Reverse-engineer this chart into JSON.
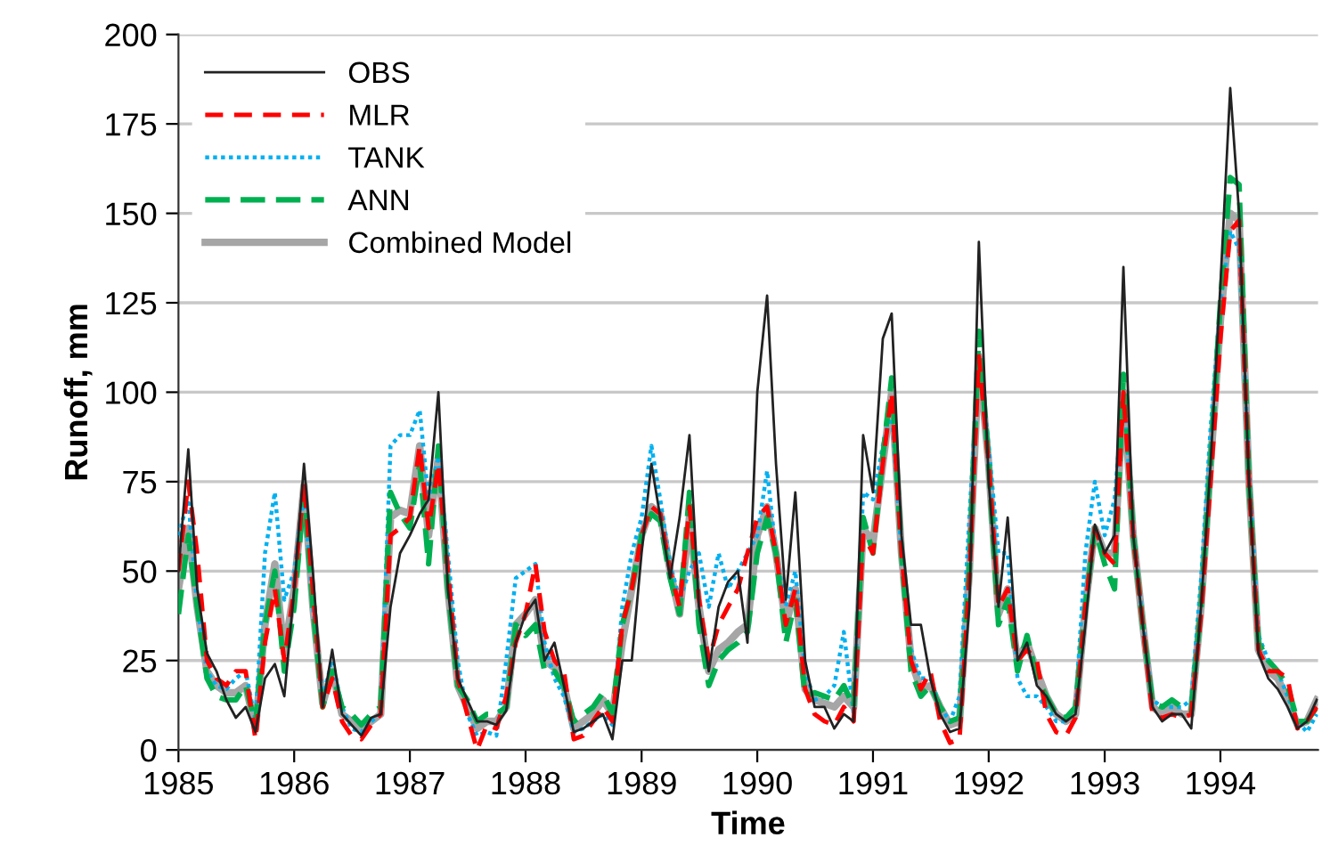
{
  "chart_data": {
    "type": "line",
    "xlabel": "Time",
    "ylabel": "Runoff, mm",
    "x": [
      "1985-01",
      "1985-02",
      "1985-03",
      "1985-04",
      "1985-05",
      "1985-06",
      "1985-07",
      "1985-08",
      "1985-09",
      "1985-10",
      "1985-11",
      "1985-12",
      "1986-01",
      "1986-02",
      "1986-03",
      "1986-04",
      "1986-05",
      "1986-06",
      "1986-07",
      "1986-08",
      "1986-09",
      "1986-10",
      "1986-11",
      "1986-12",
      "1987-01",
      "1987-02",
      "1987-03",
      "1987-04",
      "1987-05",
      "1987-06",
      "1987-07",
      "1987-08",
      "1987-09",
      "1987-10",
      "1987-11",
      "1987-12",
      "1988-01",
      "1988-02",
      "1988-03",
      "1988-04",
      "1988-05",
      "1988-06",
      "1988-07",
      "1988-08",
      "1988-09",
      "1988-10",
      "1988-11",
      "1988-12",
      "1989-01",
      "1989-02",
      "1989-03",
      "1989-04",
      "1989-05",
      "1989-06",
      "1989-07",
      "1989-08",
      "1989-09",
      "1989-10",
      "1989-11",
      "1989-12",
      "1990-01",
      "1990-02",
      "1990-03",
      "1990-04",
      "1990-05",
      "1990-06",
      "1990-07",
      "1990-08",
      "1990-09",
      "1990-10",
      "1990-11",
      "1990-12",
      "1991-01",
      "1991-02",
      "1991-03",
      "1991-04",
      "1991-05",
      "1991-06",
      "1991-07",
      "1991-08",
      "1991-09",
      "1991-10",
      "1991-11",
      "1991-12",
      "1992-01",
      "1992-02",
      "1992-03",
      "1992-04",
      "1992-05",
      "1992-06",
      "1992-07",
      "1992-08",
      "1992-09",
      "1992-10",
      "1992-11",
      "1992-12",
      "1993-01",
      "1993-02",
      "1993-03",
      "1993-04",
      "1993-05",
      "1993-06",
      "1993-07",
      "1993-08",
      "1993-09",
      "1993-10",
      "1993-11",
      "1993-12",
      "1994-01",
      "1994-02",
      "1994-03",
      "1994-04",
      "1994-05",
      "1994-06",
      "1994-07",
      "1994-08",
      "1994-09",
      "1994-10",
      "1994-11"
    ],
    "series": [
      {
        "name": "OBS",
        "color": "#222222",
        "line_style": "solid",
        "values": [
          50,
          84,
          45,
          27,
          22,
          14,
          9,
          12,
          5,
          20,
          24,
          15,
          45,
          80,
          50,
          12,
          28,
          10,
          7,
          4,
          9,
          10,
          40,
          55,
          60,
          66,
          70,
          100,
          45,
          20,
          14,
          8,
          8,
          7,
          11,
          30,
          38,
          42,
          25,
          30,
          18,
          5,
          6,
          8,
          10,
          3,
          25,
          25,
          55,
          80,
          65,
          48,
          65,
          88,
          40,
          22,
          40,
          47,
          50,
          30,
          100,
          127,
          80,
          42,
          72,
          25,
          12,
          12,
          6,
          10,
          8,
          88,
          72,
          115,
          122,
          60,
          35,
          35,
          20,
          10,
          5,
          6,
          40,
          142,
          75,
          40,
          65,
          25,
          30,
          18,
          15,
          10,
          8,
          10,
          35,
          63,
          55,
          60,
          135,
          60,
          35,
          12,
          8,
          10,
          10,
          6,
          40,
          80,
          130,
          185,
          150,
          75,
          27,
          20,
          17,
          12,
          6,
          8,
          14
        ]
      },
      {
        "name": "MLR",
        "color": "#ff0000",
        "line_style": "dashed",
        "values": [
          50,
          75,
          55,
          25,
          20,
          18,
          22,
          22,
          3,
          30,
          45,
          25,
          45,
          75,
          45,
          12,
          20,
          8,
          4,
          3,
          7,
          10,
          60,
          62,
          65,
          85,
          62,
          80,
          50,
          20,
          10,
          0,
          7,
          6,
          15,
          30,
          38,
          52,
          33,
          25,
          22,
          3,
          4,
          8,
          12,
          8,
          35,
          45,
          60,
          68,
          66,
          50,
          40,
          68,
          42,
          25,
          35,
          40,
          45,
          55,
          65,
          68,
          55,
          35,
          45,
          17,
          10,
          8,
          7,
          12,
          8,
          60,
          55,
          80,
          100,
          55,
          25,
          17,
          22,
          8,
          2,
          3,
          48,
          110,
          80,
          40,
          45,
          25,
          28,
          25,
          10,
          5,
          4,
          9,
          40,
          62,
          55,
          52,
          100,
          60,
          35,
          10,
          9,
          10,
          9,
          10,
          38,
          75,
          115,
          145,
          148,
          75,
          28,
          22,
          22,
          20,
          6,
          8,
          12
        ]
      },
      {
        "name": "TANK",
        "color": "#00b0f0",
        "line_style": "dotted",
        "values": [
          60,
          70,
          40,
          22,
          18,
          17,
          20,
          22,
          8,
          55,
          72,
          42,
          50,
          72,
          40,
          15,
          25,
          12,
          6,
          5,
          8,
          10,
          85,
          88,
          88,
          95,
          70,
          82,
          55,
          25,
          10,
          4,
          5,
          4,
          25,
          48,
          50,
          52,
          30,
          20,
          15,
          5,
          6,
          8,
          10,
          7,
          40,
          55,
          65,
          85,
          70,
          52,
          42,
          50,
          55,
          40,
          55,
          45,
          50,
          55,
          60,
          78,
          55,
          40,
          50,
          22,
          14,
          15,
          18,
          33,
          10,
          72,
          70,
          85,
          95,
          55,
          28,
          20,
          20,
          12,
          8,
          15,
          65,
          110,
          85,
          55,
          55,
          20,
          15,
          15,
          12,
          8,
          8,
          12,
          55,
          75,
          60,
          70,
          100,
          62,
          36,
          14,
          12,
          12,
          12,
          14,
          48,
          90,
          125,
          145,
          140,
          80,
          32,
          25,
          22,
          15,
          8,
          5,
          10
        ]
      },
      {
        "name": "ANN",
        "color": "#00b050",
        "line_style": "dashed",
        "values": [
          38,
          60,
          40,
          20,
          15,
          14,
          14,
          18,
          7,
          35,
          50,
          22,
          40,
          72,
          40,
          12,
          22,
          12,
          10,
          7,
          10,
          12,
          72,
          66,
          62,
          80,
          52,
          85,
          45,
          18,
          14,
          8,
          10,
          10,
          12,
          35,
          32,
          35,
          22,
          22,
          18,
          8,
          10,
          12,
          16,
          10,
          35,
          45,
          60,
          66,
          64,
          48,
          38,
          72,
          35,
          18,
          25,
          28,
          30,
          33,
          55,
          65,
          55,
          30,
          42,
          15,
          16,
          15,
          14,
          18,
          12,
          65,
          55,
          82,
          104,
          55,
          22,
          15,
          18,
          12,
          8,
          9,
          50,
          117,
          80,
          35,
          42,
          22,
          32,
          20,
          15,
          10,
          9,
          12,
          40,
          62,
          52,
          45,
          105,
          60,
          35,
          13,
          12,
          14,
          12,
          11,
          40,
          80,
          125,
          160,
          158,
          75,
          30,
          25,
          22,
          18,
          8,
          8,
          12
        ]
      },
      {
        "name": "Combined Model",
        "color": "#a6a6a6",
        "line_style": "solid",
        "values": [
          45,
          62,
          40,
          22,
          18,
          16,
          16,
          18,
          6,
          35,
          52,
          27,
          45,
          74,
          40,
          13,
          22,
          10,
          8,
          6,
          8,
          10,
          65,
          67,
          66,
          85,
          60,
          82,
          45,
          18,
          12,
          6,
          8,
          8,
          12,
          35,
          38,
          42,
          25,
          23,
          18,
          6,
          8,
          10,
          14,
          10,
          30,
          45,
          60,
          68,
          66,
          50,
          38,
          65,
          40,
          22,
          28,
          30,
          33,
          35,
          60,
          68,
          55,
          35,
          45,
          17,
          14,
          13,
          12,
          15,
          12,
          62,
          58,
          80,
          100,
          55,
          25,
          17,
          18,
          12,
          7,
          8,
          50,
          110,
          80,
          38,
          45,
          25,
          30,
          22,
          15,
          10,
          8,
          10,
          40,
          62,
          55,
          55,
          100,
          60,
          35,
          12,
          10,
          12,
          10,
          10,
          40,
          80,
          120,
          150,
          148,
          75,
          28,
          22,
          20,
          14,
          7,
          8,
          14
        ]
      }
    ],
    "xlim": [
      "1985-01-01",
      "1994-11-05"
    ],
    "xticks": [
      "1985",
      "1986",
      "1987",
      "1988",
      "1989",
      "1990",
      "1991",
      "1992",
      "1993",
      "1994"
    ],
    "ylim": [
      0,
      200
    ],
    "yticks": [
      0,
      25,
      50,
      75,
      100,
      125,
      150,
      175,
      200
    ],
    "grid": "y",
    "legend": "top left"
  }
}
